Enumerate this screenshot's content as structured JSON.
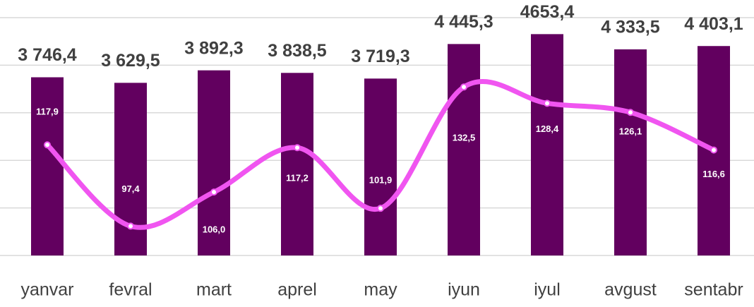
{
  "chart_data": {
    "type": "bar_line",
    "categories": [
      "yanvar",
      "fevral",
      "mart",
      "aprel",
      "may",
      "iyun",
      "iyul",
      "avgust",
      "sentabr"
    ],
    "series": [
      {
        "type": "bar",
        "color": "#62005f",
        "values": [
          3746.4,
          3629.5,
          3892.3,
          3838.5,
          3719.3,
          4445.3,
          4653.4,
          4333.5,
          4403.1
        ],
        "value_labels": [
          "3 746,4",
          "3 629,5",
          "3 892,3",
          "3 838,5",
          "3 719,3",
          "4 445,3",
          "4653,4",
          "4 333,5",
          "4 403,1"
        ]
      },
      {
        "type": "line",
        "axis": "y2",
        "color": "#f055f0",
        "smooth": true,
        "values": [
          117.9,
          97.4,
          106.0,
          117.2,
          101.9,
          132.5,
          128.4,
          126.1,
          116.6
        ],
        "value_labels": [
          "117,9",
          "97,4",
          "106,0",
          "117,2",
          "101,9",
          "132,5",
          "128,4",
          "126,1",
          "116,6"
        ]
      }
    ],
    "ylim": [
      0,
      5000
    ],
    "yticks": [
      0,
      1000,
      2000,
      3000,
      4000,
      5000
    ],
    "y2lim": [
      90,
      150
    ],
    "grid": true
  }
}
